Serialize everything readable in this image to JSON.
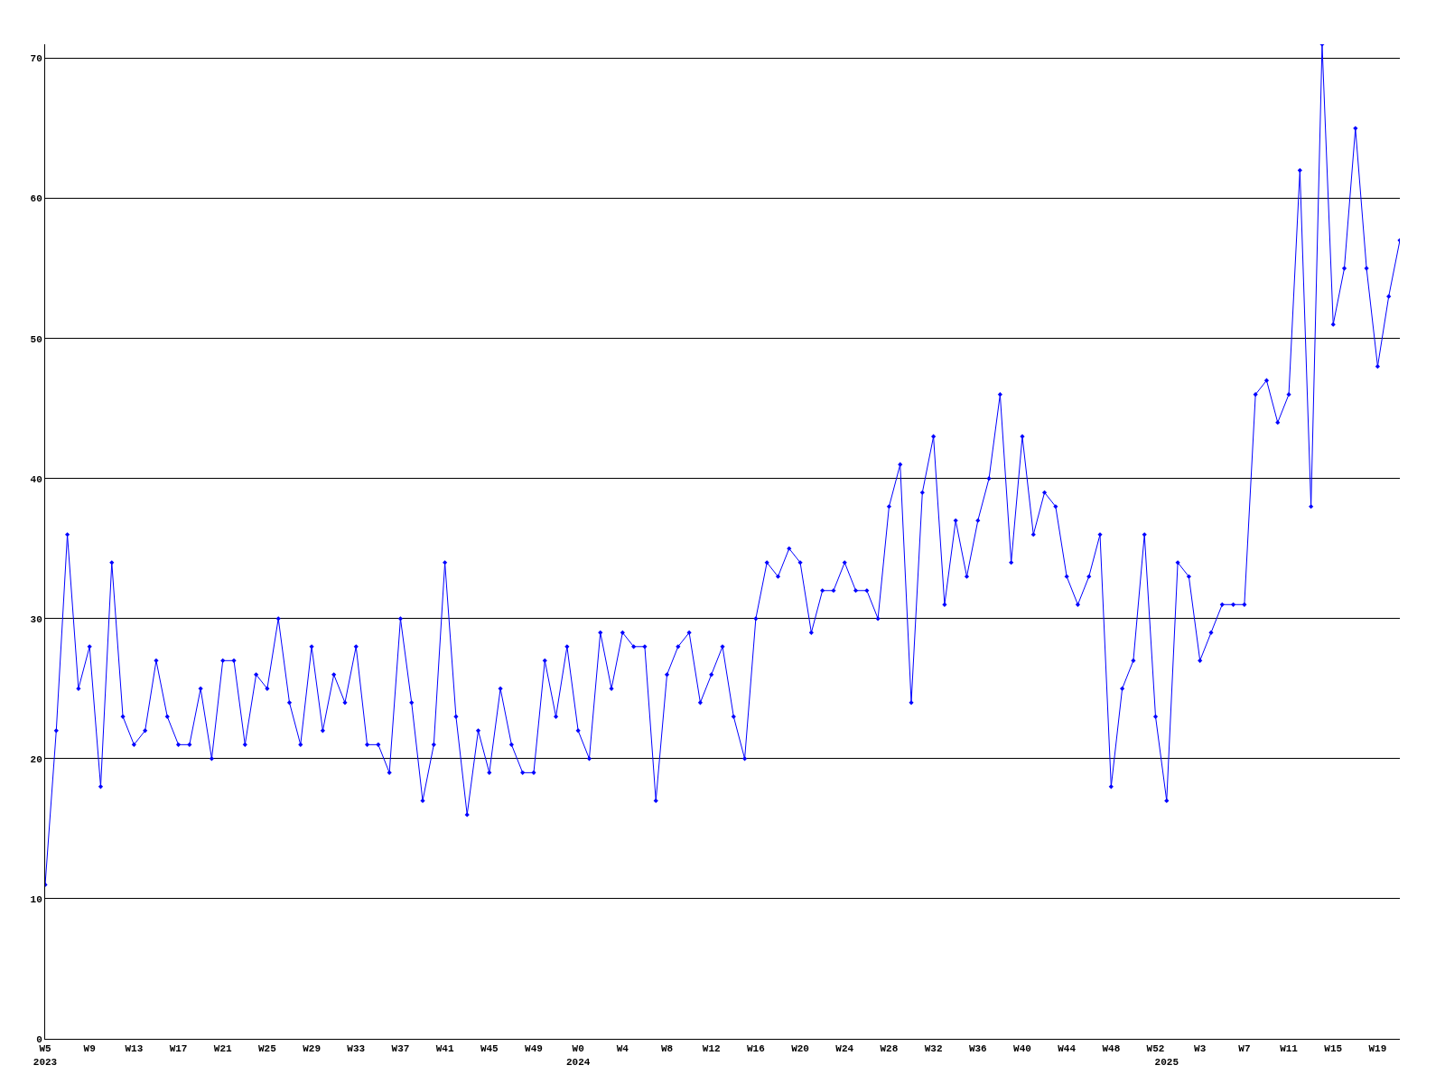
{
  "chart_data": {
    "type": "line",
    "categories": [
      "W5\n2023",
      null,
      null,
      null,
      "W9",
      null,
      null,
      null,
      "W13",
      null,
      null,
      null,
      "W17",
      null,
      null,
      null,
      "W21",
      null,
      null,
      null,
      "W25",
      null,
      null,
      null,
      "W29",
      null,
      null,
      null,
      "W33",
      null,
      null,
      null,
      "W37",
      null,
      null,
      null,
      "W41",
      null,
      null,
      null,
      "W45",
      null,
      null,
      null,
      "W49",
      null,
      null,
      null,
      "W0\n2024",
      null,
      null,
      null,
      "W4",
      null,
      null,
      null,
      "W8",
      null,
      null,
      null,
      "W12",
      null,
      null,
      null,
      "W16",
      null,
      null,
      null,
      "W20",
      null,
      null,
      null,
      "W24",
      null,
      null,
      null,
      "W28",
      null,
      null,
      null,
      "W32",
      null,
      null,
      null,
      "W36",
      null,
      null,
      null,
      "W40",
      null,
      null,
      null,
      "W44",
      null,
      null,
      null,
      "W48",
      null,
      null,
      null,
      "W52",
      "\n2025",
      null,
      null,
      "W3",
      null,
      null,
      null,
      "W7",
      null,
      null,
      null,
      "W11",
      null,
      null,
      null,
      "W15",
      null,
      null,
      null,
      "W19",
      null,
      null
    ],
    "series": [
      {
        "color": "#0000ff",
        "values": [
          11,
          22,
          36,
          25,
          28,
          18,
          34,
          23,
          21,
          22,
          27,
          23,
          21,
          21,
          25,
          20,
          27,
          27,
          21,
          26,
          25,
          30,
          24,
          21,
          28,
          22,
          26,
          24,
          28,
          21,
          21,
          19,
          30,
          24,
          17,
          21,
          34,
          23,
          16,
          22,
          19,
          25,
          21,
          19,
          19,
          27,
          23,
          28,
          22,
          20,
          29,
          25,
          29,
          28,
          28,
          17,
          26,
          28,
          29,
          24,
          26,
          28,
          23,
          20,
          30,
          34,
          33,
          35,
          34,
          29,
          32,
          32,
          34,
          32,
          32,
          30,
          38,
          41,
          24,
          39,
          43,
          31,
          37,
          33,
          37,
          40,
          46,
          34,
          43,
          36,
          39,
          38,
          33,
          31,
          33,
          36,
          18,
          25,
          27,
          36,
          23,
          17,
          34,
          33,
          27,
          29,
          31,
          31,
          31,
          46,
          47,
          44,
          46,
          62,
          38,
          71,
          51,
          55,
          65,
          55,
          48,
          53,
          57
        ]
      }
    ],
    "ylim": [
      0,
      71
    ],
    "yticks": [
      0,
      10,
      20,
      30,
      40,
      50,
      60,
      70
    ],
    "grid": "y",
    "marker": "diamond",
    "line_style": "solid"
  }
}
